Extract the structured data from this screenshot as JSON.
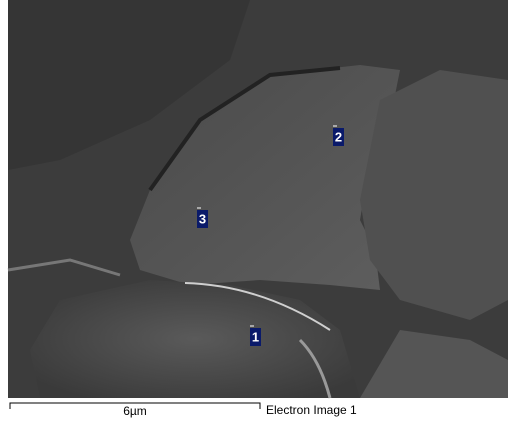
{
  "image": {
    "markers": [
      {
        "label": "1"
      },
      {
        "label": "2"
      },
      {
        "label": "3"
      }
    ],
    "scale_bar": {
      "label": "6µm"
    },
    "caption": "Electron Image 1"
  }
}
